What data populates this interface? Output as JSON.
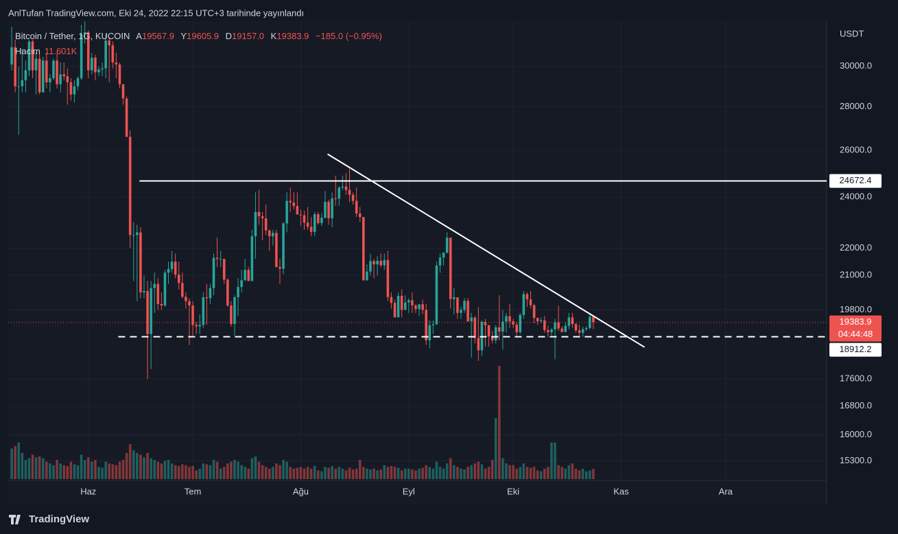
{
  "header": {
    "published": "AnlTufan TradingView.com, Eki 24, 2022 22:15 UTC+3 tarihinde yayınlandı",
    "brand": "TradingView"
  },
  "chart_data": {
    "type": "candlestick",
    "currency": "USDT",
    "log_scale": true,
    "grid": true,
    "up_color": "#26a69a",
    "down_color": "#ef5350",
    "legend": {
      "symbol": "Bitcoin / Tether, 1G, KUCOIN",
      "o_name": "A",
      "o": "19567.9",
      "h_name": "Y",
      "h": "19605.9",
      "l_name": "D",
      "l": "19157.0",
      "c_name": "K",
      "c": "19383.9",
      "change": "−185.0 (−0.95%)",
      "volume_name": "Hacim",
      "volume": "11.601K"
    },
    "xlim": [
      -1,
      234
    ],
    "xticks": [
      {
        "value": 22,
        "label": "Haz"
      },
      {
        "value": 52,
        "label": "Tem"
      },
      {
        "value": 83,
        "label": "Ağu"
      },
      {
        "value": 114,
        "label": "Eyl"
      },
      {
        "value": 144,
        "label": "Eki"
      },
      {
        "value": 175,
        "label": "Kas"
      },
      {
        "value": 205,
        "label": "Ara"
      }
    ],
    "ylim": [
      14800,
      32250
    ],
    "yticks": [
      {
        "value": 30000,
        "label": "30000.0"
      },
      {
        "value": 28000,
        "label": "28000.0"
      },
      {
        "value": 26000,
        "label": "26000.0"
      },
      {
        "value": 24000,
        "label": "24000.0"
      },
      {
        "value": 22000,
        "label": "22000.0"
      },
      {
        "value": 21000,
        "label": "21000.0"
      },
      {
        "value": 19800,
        "label": "19800.0"
      },
      {
        "value": 17600,
        "label": "17600.0"
      },
      {
        "value": 16800,
        "label": "16800.0"
      },
      {
        "value": 16000,
        "label": "16000.0"
      },
      {
        "value": 15300,
        "label": "15300.0"
      }
    ],
    "countdown": "04:44:48",
    "hlines": [
      {
        "value": 24672.4,
        "x_from": 36.7,
        "style": "solid"
      },
      {
        "value": 18912.2,
        "x_from": 30.6,
        "style": "dashed"
      }
    ],
    "trendline": {
      "x": [
        90.7,
        181.7
      ],
      "y": [
        25830,
        18580
      ]
    },
    "candles": {
      "open": [
        30100,
        31000,
        29000,
        29000,
        29300,
        29800,
        31300,
        29800,
        30400,
        28700,
        30300,
        29200,
        29400,
        30300,
        29100,
        29600,
        29500,
        29200,
        28600,
        29000,
        29400,
        31700,
        31800,
        29800,
        30450,
        29700,
        29850,
        29900,
        31350,
        31100,
        30200,
        30100,
        29100,
        28400,
        26600,
        22500,
        22500,
        22600,
        20400,
        20450,
        19000,
        20550,
        20700,
        20000,
        19950,
        21100,
        21230,
        21500,
        21030,
        20730,
        20250,
        20100,
        19950,
        19300,
        19250,
        19300,
        20230,
        20200,
        20550,
        21640,
        21600,
        21600,
        20850,
        19950,
        19330,
        20230,
        20590,
        20830,
        21200,
        20800,
        22450,
        23400,
        23230,
        23150,
        22680,
        22450,
        22580,
        21300,
        21240,
        22950,
        23850,
        23780,
        23640,
        23300,
        23270,
        22980,
        22820,
        22620,
        23310,
        22960,
        23170,
        23810,
        23150,
        23950,
        23940,
        24400,
        24440,
        24300,
        24100,
        23850,
        23340,
        23200,
        20830,
        21140,
        21520,
        21400,
        21530,
        21370,
        21560,
        20240,
        20040,
        19550,
        20280,
        19800,
        20050,
        20130,
        19950,
        19830,
        19990,
        19800,
        18800,
        19290,
        19320,
        21360,
        21650,
        21830,
        22400,
        20170,
        20230,
        19700,
        19800,
        20110,
        19420,
        19540,
        18870,
        18480,
        19400,
        19290,
        18920,
        18800,
        19220,
        19080,
        19410,
        19590,
        19420,
        19310,
        19060,
        19630,
        20340,
        20160,
        19960,
        19530,
        19420,
        19450,
        19130,
        19060,
        19150,
        19380,
        19180,
        19070,
        19270,
        19550,
        19330,
        19120,
        19040,
        19160,
        19200,
        19567.9
      ],
      "high": [
        32100,
        31400,
        30000,
        30900,
        30300,
        31400,
        31400,
        30700,
        30700,
        30500,
        30700,
        29600,
        30400,
        30700,
        30200,
        30200,
        29900,
        29400,
        29300,
        29500,
        32200,
        32400,
        31900,
        30700,
        30600,
        30000,
        30200,
        31700,
        31500,
        31300,
        30700,
        30200,
        29100,
        28500,
        26900,
        23000,
        22900,
        22800,
        21000,
        20800,
        20800,
        21100,
        20900,
        20400,
        21200,
        21500,
        21900,
        21800,
        21500,
        21100,
        20400,
        20200,
        20100,
        19400,
        19650,
        20400,
        20700,
        20700,
        21800,
        22400,
        21900,
        21600,
        20900,
        20100,
        20300,
        20900,
        21200,
        21600,
        21300,
        22700,
        24200,
        24300,
        23400,
        23700,
        22700,
        22700,
        22700,
        21600,
        23000,
        24200,
        24400,
        24200,
        24200,
        23500,
        23450,
        23600,
        23200,
        23400,
        23400,
        23350,
        24250,
        23900,
        24200,
        24900,
        24450,
        24900,
        25000,
        25200,
        24200,
        24400,
        23600,
        23200,
        21400,
        21800,
        21600,
        21700,
        21800,
        21800,
        21900,
        20400,
        20150,
        20400,
        20500,
        20300,
        20200,
        20400,
        20000,
        20000,
        20150,
        20000,
        19450,
        19450,
        21500,
        21800,
        21850,
        22600,
        22400,
        20550,
        20200,
        19900,
        20200,
        20200,
        19700,
        19600,
        19900,
        19450,
        19500,
        19300,
        19100,
        19300,
        20300,
        19800,
        19700,
        20000,
        19500,
        19400,
        19700,
        20450,
        20400,
        20450,
        20000,
        19550,
        19550,
        19600,
        19270,
        19200,
        19500,
        19950,
        19250,
        19400,
        19700,
        19700,
        19350,
        19300,
        19250,
        19250,
        19700,
        19605.9
      ],
      "low": [
        29800,
        28700,
        26700,
        28700,
        28700,
        29500,
        29400,
        28600,
        28600,
        28700,
        28900,
        28700,
        29300,
        28900,
        28700,
        29300,
        28100,
        28300,
        28200,
        28800,
        29300,
        31200,
        29400,
        29600,
        29300,
        29500,
        29500,
        29400,
        29200,
        29900,
        29400,
        28900,
        28100,
        26600,
        22000,
        20800,
        20100,
        20200,
        20200,
        17600,
        17900,
        19700,
        19800,
        19800,
        19900,
        20700,
        21100,
        20900,
        20500,
        20200,
        19850,
        18650,
        18950,
        19000,
        19000,
        19200,
        19300,
        20000,
        20300,
        21300,
        21300,
        20700,
        19900,
        19250,
        18950,
        19600,
        20400,
        20800,
        20800,
        20800,
        21600,
        22900,
        22300,
        22500,
        21900,
        22100,
        21300,
        20700,
        21050,
        22600,
        23400,
        23500,
        23300,
        22850,
        22700,
        22700,
        22450,
        22450,
        22900,
        22850,
        23150,
        22900,
        22800,
        23650,
        23650,
        24300,
        24100,
        23800,
        23700,
        23200,
        23000,
        20800,
        20800,
        21000,
        20900,
        21000,
        21300,
        21200,
        20100,
        19850,
        19550,
        19600,
        19550,
        19800,
        19700,
        19700,
        19700,
        19600,
        19650,
        18650,
        18550,
        19000,
        19300,
        21100,
        21350,
        21800,
        19850,
        19650,
        19500,
        19500,
        19700,
        19400,
        18250,
        18700,
        18150,
        18300,
        18600,
        18600,
        18700,
        18700,
        18800,
        18500,
        19050,
        19200,
        19200,
        18950,
        19000,
        19500,
        19900,
        19850,
        19350,
        19300,
        19350,
        19050,
        18900,
        18950,
        18200,
        19100,
        19050,
        19050,
        19150,
        19200,
        19050,
        18950,
        18900,
        19100,
        19150,
        19157.0
      ],
      "close": [
        31000,
        29000,
        29000,
        29300,
        29800,
        31300,
        29800,
        30400,
        28700,
        30300,
        29200,
        29400,
        30300,
        29100,
        29600,
        29500,
        29200,
        28600,
        29000,
        29400,
        31700,
        31800,
        29800,
        30450,
        29700,
        29850,
        29900,
        31350,
        31100,
        30200,
        30100,
        29100,
        28400,
        26600,
        22500,
        22500,
        22600,
        20400,
        20450,
        19000,
        20550,
        20700,
        20000,
        19950,
        21100,
        21230,
        21500,
        21030,
        20730,
        20250,
        20100,
        19950,
        19300,
        19250,
        19300,
        20230,
        20200,
        20550,
        21640,
        21600,
        21600,
        20850,
        19950,
        19330,
        20230,
        20590,
        20830,
        21200,
        20800,
        22450,
        23400,
        23230,
        23150,
        22680,
        22450,
        22580,
        21300,
        21240,
        22950,
        23850,
        23780,
        23640,
        23300,
        23270,
        22980,
        22820,
        22620,
        23310,
        22960,
        23170,
        23810,
        23150,
        23950,
        23940,
        24400,
        24440,
        24300,
        24100,
        23850,
        23340,
        23200,
        20830,
        21140,
        21520,
        21400,
        21530,
        21370,
        21560,
        20240,
        20040,
        19550,
        20280,
        19800,
        20050,
        20130,
        19950,
        19830,
        19990,
        19800,
        18800,
        19290,
        19320,
        21360,
        21650,
        21830,
        22400,
        20170,
        20230,
        19700,
        19800,
        20110,
        19420,
        19540,
        18870,
        18480,
        19400,
        19290,
        18920,
        18800,
        19220,
        19080,
        19410,
        19590,
        19420,
        19310,
        19060,
        19630,
        20340,
        20160,
        19960,
        19530,
        19420,
        19450,
        19130,
        19060,
        19150,
        19380,
        19180,
        19070,
        19270,
        19550,
        19330,
        19120,
        19040,
        19160,
        19200,
        19570,
        19383.9
      ],
      "volume": [
        35,
        38,
        42,
        30,
        22,
        24,
        28,
        25,
        26,
        24,
        20,
        18,
        16,
        22,
        18,
        16,
        15,
        20,
        17,
        16,
        28,
        22,
        25,
        20,
        22,
        14,
        13,
        20,
        18,
        17,
        16,
        20,
        22,
        30,
        40,
        33,
        30,
        28,
        25,
        30,
        24,
        22,
        20,
        18,
        21,
        22,
        18,
        16,
        15,
        17,
        16,
        14,
        15,
        10,
        12,
        18,
        17,
        16,
        22,
        20,
        12,
        14,
        18,
        20,
        22,
        20,
        16,
        14,
        12,
        24,
        26,
        20,
        16,
        14,
        12,
        14,
        18,
        16,
        22,
        20,
        14,
        12,
        13,
        14,
        12,
        14,
        12,
        15,
        10,
        9,
        14,
        13,
        15,
        12,
        14,
        12,
        10,
        13,
        11,
        12,
        22,
        14,
        12,
        11,
        12,
        10,
        11,
        16,
        14,
        15,
        14,
        13,
        10,
        12,
        12,
        11,
        10,
        12,
        13,
        16,
        14,
        12,
        20,
        14,
        12,
        18,
        24,
        16,
        14,
        12,
        11,
        14,
        16,
        18,
        20,
        17,
        12,
        14,
        22,
        70,
        130,
        24,
        18,
        16,
        16,
        12,
        14,
        18,
        14,
        13,
        14,
        10,
        9,
        12,
        14,
        42,
        42,
        16,
        14,
        12,
        16,
        18,
        12,
        10,
        12,
        9,
        10,
        11.601
      ]
    }
  }
}
